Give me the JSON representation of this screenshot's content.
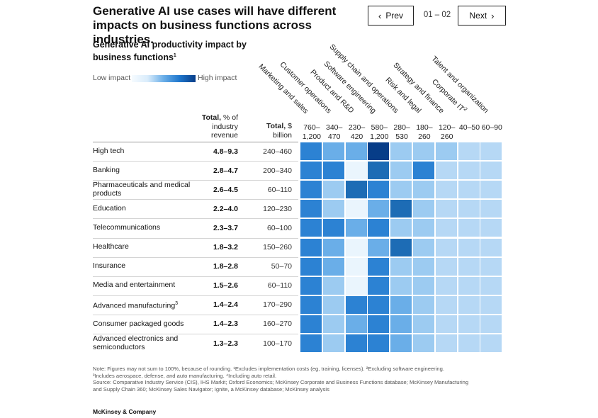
{
  "header": {
    "title": "Generative AI use cases will have different impacts on business functions across industries.",
    "prev_label": "Prev",
    "next_label": "Next",
    "page_counter": "01 – 02"
  },
  "subtitle": "Generative AI productivity impact by business functions",
  "subtitle_footnote": "1",
  "legend": {
    "low": "Low impact",
    "high": "High impact"
  },
  "colors": {
    "low": "#f6fbff",
    "high": "#073d88"
  },
  "column_headers": {
    "total_pct_bold": "Total,",
    "total_pct_rest": " % of industry revenue",
    "total_bil_bold": "Total,",
    "total_bil_rest": " $ billion"
  },
  "chart_data": {
    "type": "heatmap",
    "title": "Generative AI productivity impact by business functions",
    "functions": [
      {
        "name": "Marketing and sales",
        "total": "760–1,200"
      },
      {
        "name": "Customer operations",
        "total": "340–470"
      },
      {
        "name": "Product and R&D",
        "total": "230–420"
      },
      {
        "name": "Software engineering",
        "total": "580–1,200"
      },
      {
        "name": "Supply chain and operations",
        "total": "280–530"
      },
      {
        "name": "Risk and legal",
        "total": "180–260"
      },
      {
        "name": "Strategy and finance",
        "total": "120–260"
      },
      {
        "name": "Corporate IT",
        "total": "40–50",
        "footnote": "2"
      },
      {
        "name": "Talent and organization",
        "total": "60–90"
      }
    ],
    "industries": [
      {
        "name": "High tech",
        "pct": "4.8–9.3",
        "billion": "240–460"
      },
      {
        "name": "Banking",
        "pct": "2.8–4.7",
        "billion": "200–340"
      },
      {
        "name": "Pharmaceuticals and medical products",
        "pct": "2.6–4.5",
        "billion": "60–110"
      },
      {
        "name": "Education",
        "pct": "2.2–4.0",
        "billion": "120–230"
      },
      {
        "name": "Telecommunications",
        "pct": "2.3–3.7",
        "billion": "60–100"
      },
      {
        "name": "Healthcare",
        "pct": "1.8–3.2",
        "billion": "150–260"
      },
      {
        "name": "Insurance",
        "pct": "1.8–2.8",
        "billion": "50–70"
      },
      {
        "name": "Media and entertainment",
        "pct": "1.5–2.6",
        "billion": "60–110"
      },
      {
        "name": "Advanced manufacturing",
        "pct": "1.4–2.4",
        "billion": "170–290",
        "footnote": "3"
      },
      {
        "name": "Consumer packaged goods",
        "pct": "1.4–2.3",
        "billion": "160–270"
      },
      {
        "name": "Advanced electronics and semiconductors",
        "pct": "1.3–2.3",
        "billion": "100–170"
      }
    ],
    "impact_levels": [
      [
        4,
        3,
        3,
        6,
        2,
        2,
        2,
        1,
        1
      ],
      [
        4,
        4,
        0,
        5,
        2,
        4,
        1,
        1,
        1
      ],
      [
        4,
        2,
        5,
        4,
        2,
        2,
        1,
        1,
        1
      ],
      [
        4,
        2,
        0,
        3,
        5,
        2,
        1,
        1,
        1
      ],
      [
        4,
        4,
        3,
        4,
        2,
        2,
        1,
        1,
        1
      ],
      [
        4,
        3,
        0,
        3,
        5,
        2,
        1,
        1,
        1
      ],
      [
        4,
        3,
        0,
        4,
        2,
        2,
        1,
        1,
        1
      ],
      [
        4,
        2,
        0,
        4,
        2,
        2,
        1,
        1,
        1
      ],
      [
        4,
        2,
        4,
        4,
        3,
        2,
        1,
        1,
        1
      ],
      [
        4,
        2,
        3,
        4,
        3,
        2,
        1,
        1,
        1
      ],
      [
        4,
        2,
        4,
        4,
        3,
        2,
        1,
        1,
        1
      ]
    ],
    "level_colors": [
      "#eaf5fd",
      "#b6d8f5",
      "#9ccbf1",
      "#6aaee8",
      "#2c82d3",
      "#1d6cb5",
      "#073d88"
    ],
    "legend_placement": "top-left"
  },
  "notes": {
    "line1": "Note: Figures may not sum to 100%, because of rounding. ¹Excludes implementation costs (eg, training, licenses). ²Excluding software engineering.",
    "line2": "³Includes aerospace, defense, and auto manufacturing. ⁴Including auto retail.",
    "line3": "Source: Comparative Industry Service (CIS), IHS Markit; Oxford Economics; McKinsey Corporate and Business Functions database; McKinsey Manufacturing",
    "line4": "and Supply Chain 360; McKinsey Sales Navigator; Ignite, a McKinsey database; McKinsey analysis"
  },
  "brand": "McKinsey & Company"
}
